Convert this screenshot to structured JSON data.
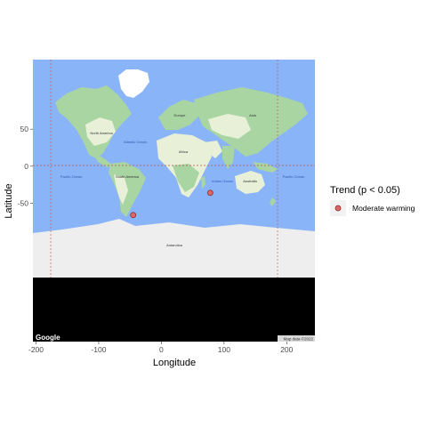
{
  "chart_data": {
    "type": "scatter",
    "title": "",
    "xlabel": "Longitude",
    "ylabel": "Latitude",
    "xlim": [
      -205,
      245
    ],
    "ylim": [
      -237,
      144
    ],
    "x_ticks": [
      -200,
      -100,
      0,
      100,
      200
    ],
    "y_ticks": [
      -50,
      0,
      50
    ],
    "grid": false,
    "legend": {
      "title": "Trend (p < 0.05)",
      "position": "right",
      "entries": [
        {
          "label": "Moderate warming",
          "color": "#e06666"
        }
      ]
    },
    "series": [
      {
        "name": "Moderate warming",
        "points": [
          {
            "x": 78,
            "y": -36
          },
          {
            "x": -45,
            "y": -66
          }
        ]
      }
    ],
    "basemap": {
      "attribution_logo": "Google",
      "attribution_text": "Map data ©2022",
      "ocean_labels": [
        "Atlantic Ocean",
        "Indian Ocean",
        "Pacific Ocean",
        "Pacific Ocean"
      ],
      "continent_labels": [
        "North America",
        "South America",
        "Europe",
        "Africa",
        "Asia",
        "Australia",
        "Antarctica"
      ]
    }
  },
  "colors": {
    "ocean": "#8ab4f8",
    "land": "#e8f0d8",
    "vegetation": "#a8d5a2",
    "ice": "#eeeeee",
    "point_fill": "#e06666",
    "point_stroke": "#8b2a2a",
    "dashed_line": "#c0504d",
    "black_strip": "#000000"
  }
}
